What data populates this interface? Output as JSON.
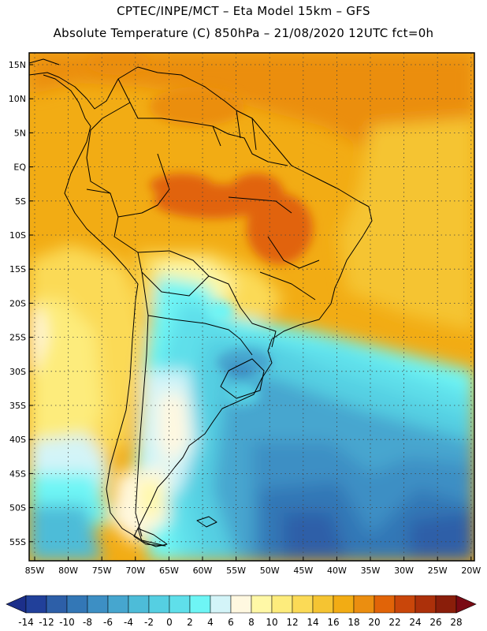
{
  "header": {
    "line1": "CPTEC/INPE/MCT  –  Eta Model 15km  –  GFS",
    "line2": "Absolute Temperature (C) 850hPa  –  21/08/2020 12UTC fct=0h"
  },
  "map": {
    "lat_labels": [
      "15N",
      "10N",
      "5N",
      "EQ",
      "5S",
      "10S",
      "15S",
      "20S",
      "25S",
      "30S",
      "35S",
      "40S",
      "45S",
      "50S",
      "55S"
    ],
    "lon_labels": [
      "85W",
      "80W",
      "75W",
      "70W",
      "65W",
      "60W",
      "55W",
      "50W",
      "45W",
      "40W",
      "35W",
      "30W",
      "25W",
      "20W"
    ],
    "gridlines": "dotted"
  },
  "colorbar": {
    "labels": [
      "-14",
      "-12",
      "-10",
      "-8",
      "-6",
      "-4",
      "-2",
      "0",
      "2",
      "4",
      "6",
      "8",
      "10",
      "12",
      "14",
      "16",
      "18",
      "20",
      "22",
      "24",
      "26",
      "28"
    ],
    "colors": [
      "#21409a",
      "#2d5fa8",
      "#3377b6",
      "#3d8fc4",
      "#46a6cf",
      "#4dbcd8",
      "#55cfe2",
      "#5fdfea",
      "#6ef5f5",
      "#d3f4f8",
      "#fff8e0",
      "#fff8a6",
      "#fdec7c",
      "#fbda56",
      "#f5c432",
      "#f2ac14",
      "#eb8e10",
      "#e16408",
      "#c9460a",
      "#ac300a",
      "#8a1e0a"
    ],
    "low_end_color": "#1c2f8a",
    "high_end_color": "#7a0a14"
  }
}
